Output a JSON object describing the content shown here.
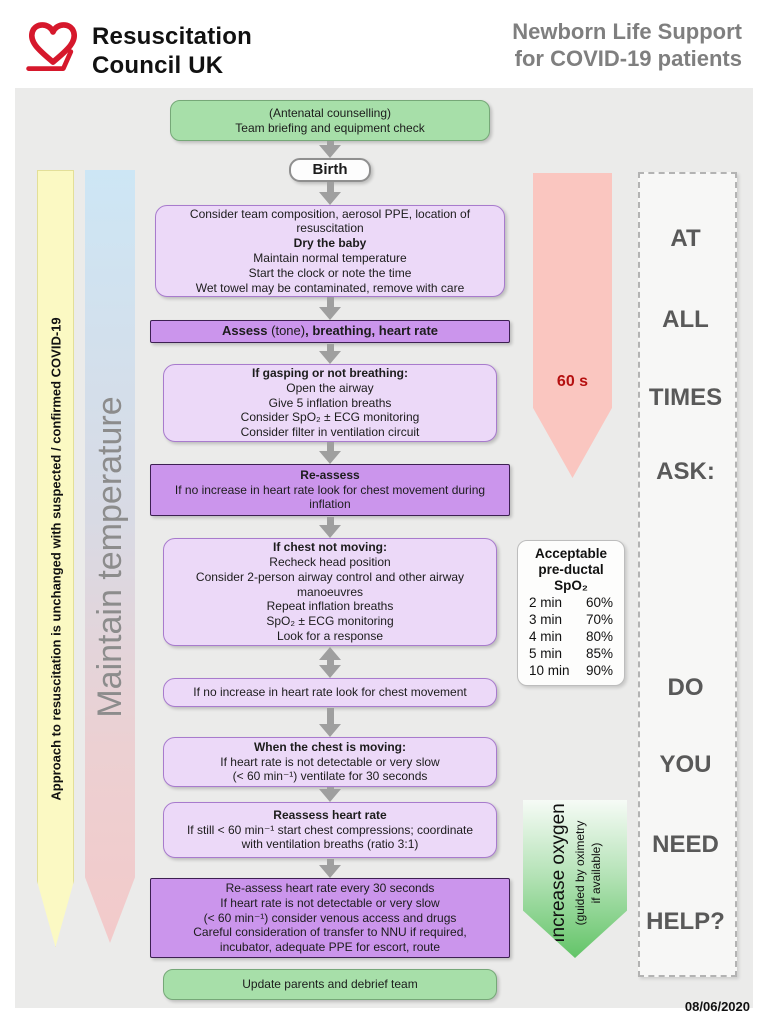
{
  "header": {
    "brand": [
      "Resuscitation",
      "Council UK"
    ],
    "title": [
      "Newborn Life Support",
      "for COVID-19 patients"
    ]
  },
  "rails": {
    "approach": "Approach to resuscitation is unchanged with suspected / confirmed COVID-19",
    "maintain": "Maintain temperature"
  },
  "timer": {
    "label": "60 s"
  },
  "oxygen": {
    "lines": [
      "Increase oxygen",
      "(guided by oximetry",
      "if available)"
    ]
  },
  "ask": {
    "words": [
      "AT",
      "ALL",
      "TIMES",
      "ASK:",
      "DO",
      "YOU",
      "NEED",
      "HELP?"
    ]
  },
  "spo2": {
    "title_lines": [
      "Acceptable",
      "pre-ductal",
      "SpO₂"
    ],
    "rows": [
      [
        "2 min",
        "60%"
      ],
      [
        "3 min",
        "70%"
      ],
      [
        "4 min",
        "80%"
      ],
      [
        "5 min",
        "85%"
      ],
      [
        "10 min",
        "90%"
      ]
    ]
  },
  "flow": {
    "antenatal": {
      "lines": [
        "(Antenatal counselling)",
        "Team briefing and equipment check"
      ]
    },
    "birth": "Birth",
    "prepare": {
      "lines": [
        "Consider team composition, aerosol PPE, location of",
        "resuscitation",
        {
          "text": "Dry the baby",
          "bold": true
        },
        "Maintain normal temperature",
        "Start the clock or note the time",
        "Wet towel may be contaminated, remove with care"
      ]
    },
    "assess": {
      "seg_bold1": "Assess ",
      "seg_normal": "(tone)",
      "seg_bold2": ", breathing, heart rate"
    },
    "gasping": {
      "title": "If gasping or not breathing:",
      "lines": [
        "Open the airway",
        "Give 5 inflation breaths",
        "Consider SpO₂ ± ECG monitoring",
        "Consider filter in ventilation circuit"
      ]
    },
    "reassess_bar": {
      "title": "Re-assess",
      "lines": [
        "If no increase in heart rate look for chest movement during",
        "inflation"
      ]
    },
    "chest_not_moving": {
      "title": "If chest not moving:",
      "lines": [
        "Recheck head position",
        "Consider 2-person airway control and other airway",
        "manoeuvres",
        "Repeat inflation breaths",
        "SpO₂ ± ECG monitoring",
        "Look for a response"
      ]
    },
    "no_increase": {
      "lines": [
        "If no increase in heart rate look for chest movement"
      ]
    },
    "chest_moving": {
      "title": "When the chest is moving:",
      "lines": [
        "If heart rate is not detectable or very slow",
        "(< 60 min⁻¹) ventilate for 30 seconds"
      ]
    },
    "reassess_hr": {
      "title": "Reassess heart rate",
      "lines": [
        "If still < 60 min⁻¹ start chest compressions; coordinate",
        "with ventilation breaths (ratio 3:1)"
      ]
    },
    "final": {
      "lines": [
        "Re-assess heart rate every 30 seconds",
        "If heart rate is not detectable or very slow",
        "(< 60 min⁻¹) consider venous access and drugs",
        "Careful consideration of transfer to NNU if required,",
        "incubator, adequate PPE for escort, route"
      ]
    },
    "update_parents": {
      "lines": [
        "Update parents and debrief team"
      ]
    }
  },
  "footer": {
    "date": "08/06/2020"
  },
  "colors": {
    "purple_light": "#ecd9f8",
    "purple_dark": "#cb95ec",
    "green_box": "#a7dfa9",
    "yellow_rail": "#fbf9c3",
    "maintain_top": "#cde6f5",
    "maintain_bottom": "#f3caca",
    "timer_arrow": "#fac6c0",
    "timer_text": "#b51010",
    "oxygen_green": "#63c468",
    "brand_red": "#d6182c",
    "title_grey": "#7f7f7f"
  }
}
